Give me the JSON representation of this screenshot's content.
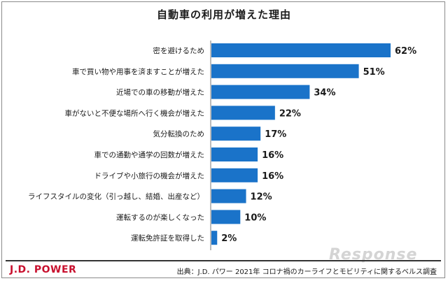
{
  "chart_data": {
    "type": "bar",
    "orientation": "horizontal",
    "title": "自動車の利用が増えた理由",
    "categories": [
      "密を避けるため",
      "車で買い物や用事を済ますことが増えた",
      "近場での車の移動が増えた",
      "車がないと不便な場所へ行く機会が増えた",
      "気分転換のため",
      "車での通勤や通学の回数が増えた",
      "ドライブや小旅行の機会が増えた",
      "ライフスタイルの変化（引っ越し、結婚、出産など）",
      "運転するのが楽しくなった",
      "運転免許証を取得した"
    ],
    "values": [
      62,
      51,
      34,
      22,
      17,
      16,
      16,
      12,
      10,
      2
    ],
    "value_labels": [
      "62%",
      "51%",
      "34%",
      "22%",
      "17%",
      "16%",
      "16%",
      "12%",
      "10%",
      "2%"
    ],
    "xlim": [
      0,
      64
    ],
    "grid": false,
    "colors": {
      "bar": "#1a73c9"
    }
  },
  "brand": {
    "logo": "J.D. POWER",
    "logo_color": "#c8102e"
  },
  "footer": {
    "source": "出典：J.D. パワー 2021年 コロナ禍のカーライフとモビリティに関するベルス調査"
  },
  "watermark": {
    "text": "Response"
  }
}
